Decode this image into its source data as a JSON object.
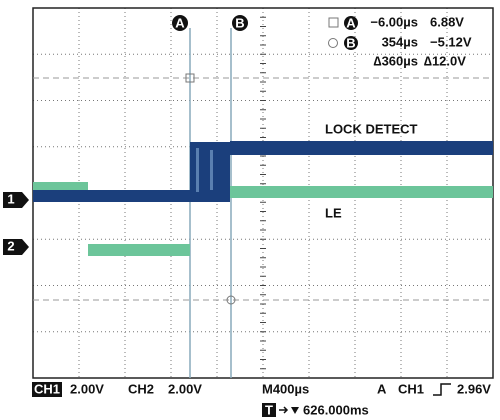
{
  "cursors": {
    "a": {
      "marker": "A",
      "time": "−6.00µs",
      "voltage": "6.88V"
    },
    "b": {
      "marker": "B",
      "time": "354µs",
      "voltage": "−5.12V"
    },
    "delta": {
      "time": "∆360µs",
      "voltage": "∆12.0V"
    }
  },
  "traces": {
    "ch1": {
      "marker": "1",
      "label": "LOCK DETECT"
    },
    "ch2": {
      "marker": "2",
      "label": "LE"
    }
  },
  "status": {
    "ch1": "CH1",
    "ch1_scale": "2.00V",
    "ch2": "CH2",
    "ch2_scale": "2.00V",
    "timebase": "M400µs",
    "trigger_mode": "A",
    "trigger_source": "CH1",
    "trigger_level": "2.96V",
    "trigger_marker": "T",
    "trigger_position": "626.000ms"
  }
}
